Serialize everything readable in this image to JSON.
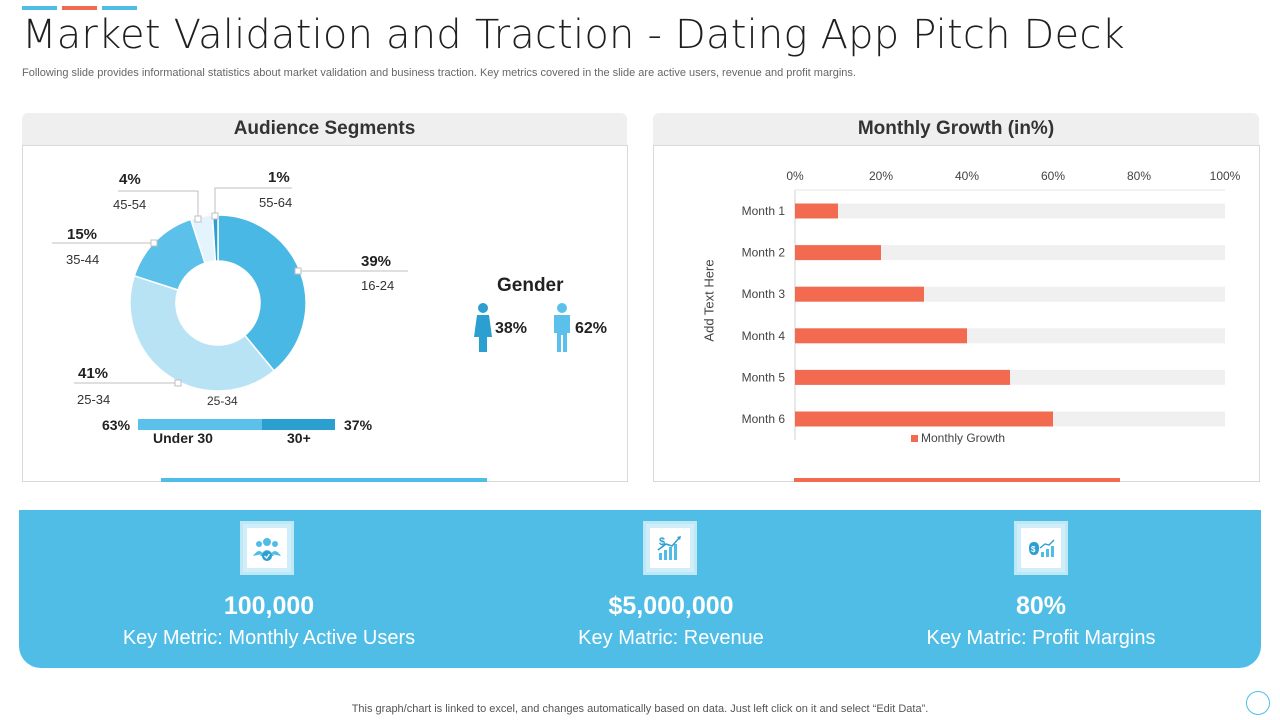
{
  "colors": {
    "accent_blue": "#4fbde6",
    "accent_orange": "#f26b50",
    "donut_dark": "#4ab8e4",
    "donut_light": "#b8e3f5",
    "donut_mid": "#5bc1ea"
  },
  "header": {
    "title": "Market Validation and Traction - Dating App Pitch Deck",
    "subtitle": "Following slide provides informational statistics about market validation and business traction. Key metrics covered in the slide are active users, revenue and profit margins."
  },
  "audience": {
    "heading": "Audience Segments",
    "segments": [
      {
        "pct": "39%",
        "label": "16-24",
        "value": 39
      },
      {
        "pct": "41%",
        "label": "25-34",
        "value": 41
      },
      {
        "pct": "15%",
        "label": "35-44",
        "value": 15
      },
      {
        "pct": "4%",
        "label": "45-54",
        "value": 4
      },
      {
        "pct": "1%",
        "label": "55-64",
        "value": 1
      }
    ],
    "inner_label": "25-34",
    "gender": {
      "title": "Gender",
      "female": "38%",
      "male": "62%"
    },
    "age_split": {
      "under_pct": "63%",
      "under_label": "Under 30",
      "over_pct": "37%",
      "over_label": "30+",
      "under_value": 63
    }
  },
  "chart_data": {
    "type": "bar",
    "title": "Monthly Growth (in%)",
    "categories": [
      "Month 1",
      "Month 2",
      "Month 3",
      "Month 4",
      "Month 5",
      "Month 6"
    ],
    "series": [
      {
        "name": "Monthly Growth",
        "values": [
          10,
          20,
          30,
          40,
          50,
          60
        ]
      }
    ],
    "xlim": [
      0,
      100
    ],
    "xticks": [
      "0%",
      "20%",
      "40%",
      "60%",
      "80%",
      "100%"
    ],
    "ylabel": "Add Text Here",
    "legend": "bottom"
  },
  "metrics": [
    {
      "value": "100,000",
      "label": "Key Metric: Monthly Active Users",
      "icon": "users-icon"
    },
    {
      "value": "$5,000,000",
      "label": "Key Matric: Revenue",
      "icon": "revenue-icon"
    },
    {
      "value": "80%",
      "label": "Key Matric: Profit Margins",
      "icon": "profit-icon"
    }
  ],
  "footer": "This graph/chart is linked to excel,  and changes automatically based on data. Just left click on it and select “Edit Data”."
}
